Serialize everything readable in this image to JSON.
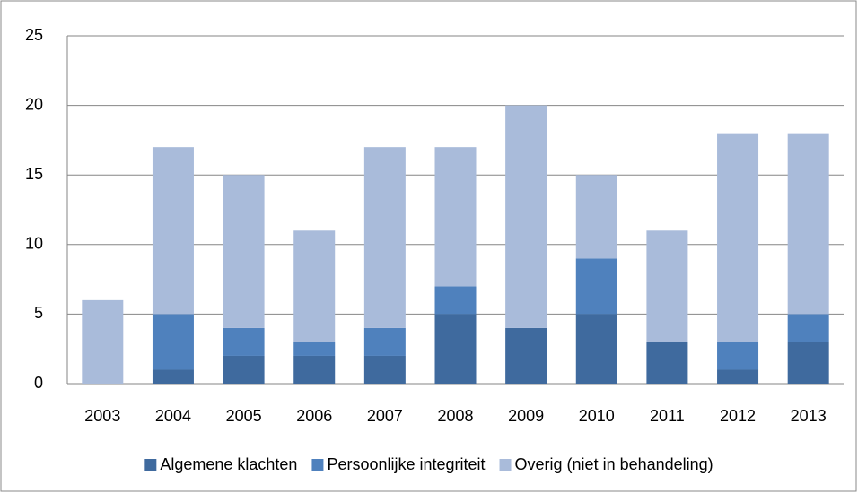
{
  "chart_data": {
    "type": "stacked_bar",
    "categories": [
      "2003",
      "2004",
      "2005",
      "2006",
      "2007",
      "2008",
      "2009",
      "2010",
      "2011",
      "2012",
      "2013"
    ],
    "series": [
      {
        "name": "Algemene klachten",
        "color": "#3f6a9e",
        "values": [
          0,
          1,
          2,
          2,
          2,
          5,
          4,
          5,
          3,
          1,
          3
        ]
      },
      {
        "name": "Persoonlijke integriteit",
        "color": "#4f81bd",
        "values": [
          0,
          4,
          2,
          1,
          2,
          2,
          0,
          4,
          0,
          2,
          2
        ]
      },
      {
        "name": "Overig (niet in behandeling)",
        "color": "#a9bbda",
        "values": [
          6,
          12,
          11,
          8,
          13,
          10,
          16,
          6,
          8,
          15,
          13
        ]
      }
    ],
    "ylim": [
      0,
      25
    ],
    "yticks": [
      0,
      5,
      10,
      15,
      20,
      25
    ],
    "grid": true,
    "legend": "bottom"
  }
}
